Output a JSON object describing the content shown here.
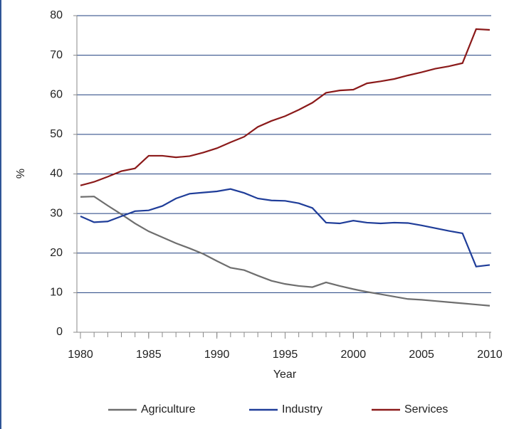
{
  "chart_data": {
    "type": "line",
    "x_label": "Year",
    "y_label": "%",
    "x": [
      1980,
      1981,
      1982,
      1983,
      1984,
      1985,
      1986,
      1987,
      1988,
      1989,
      1990,
      1991,
      1992,
      1993,
      1994,
      1995,
      1996,
      1997,
      1998,
      1999,
      2000,
      2001,
      2002,
      2003,
      2004,
      2005,
      2006,
      2007,
      2008,
      2009,
      2010
    ],
    "series": [
      {
        "name": "Agriculture",
        "color": "#6e6e6e",
        "values": [
          34.2,
          34.3,
          32,
          29.8,
          27.5,
          25.5,
          24,
          22.5,
          21.2,
          19.8,
          18,
          16.3,
          15.7,
          14.3,
          13,
          12.2,
          11.7,
          11.4,
          12.6,
          11.7,
          10.9,
          10.2,
          9.6,
          9,
          8.4,
          8.2,
          7.9,
          7.6,
          7.3,
          7,
          6.7
        ]
      },
      {
        "name": "Industry",
        "color": "#1f3d99",
        "values": [
          29.3,
          27.8,
          28,
          29.3,
          30.6,
          30.8,
          31.9,
          33.8,
          35,
          35.3,
          35.6,
          36.2,
          35.2,
          33.8,
          33.3,
          33.2,
          32.6,
          31.4,
          27.7,
          27.5,
          28.2,
          27.7,
          27.5,
          27.7,
          27.6,
          27,
          26.3,
          25.6,
          25,
          16.6,
          17
        ]
      },
      {
        "name": "Services",
        "color": "#8b1a1a",
        "values": [
          37.1,
          38,
          39.3,
          40.7,
          41.4,
          44.6,
          44.6,
          44.2,
          44.5,
          45.4,
          46.5,
          48,
          49.4,
          51.9,
          53.4,
          54.6,
          56.2,
          58,
          60.5,
          61.1,
          61.3,
          62.9,
          63.4,
          64,
          64.9,
          65.7,
          66.6,
          67.2,
          68,
          76.6,
          76.4
        ]
      }
    ],
    "xlim": [
      1980,
      2010
    ],
    "xticks": [
      1980,
      1985,
      1990,
      1995,
      2000,
      2005,
      2010
    ],
    "ylim": [
      0,
      80
    ],
    "yticks": [
      0,
      10,
      20,
      30,
      40,
      50,
      60,
      70,
      80
    ],
    "grid": true,
    "legend": "bottom"
  }
}
